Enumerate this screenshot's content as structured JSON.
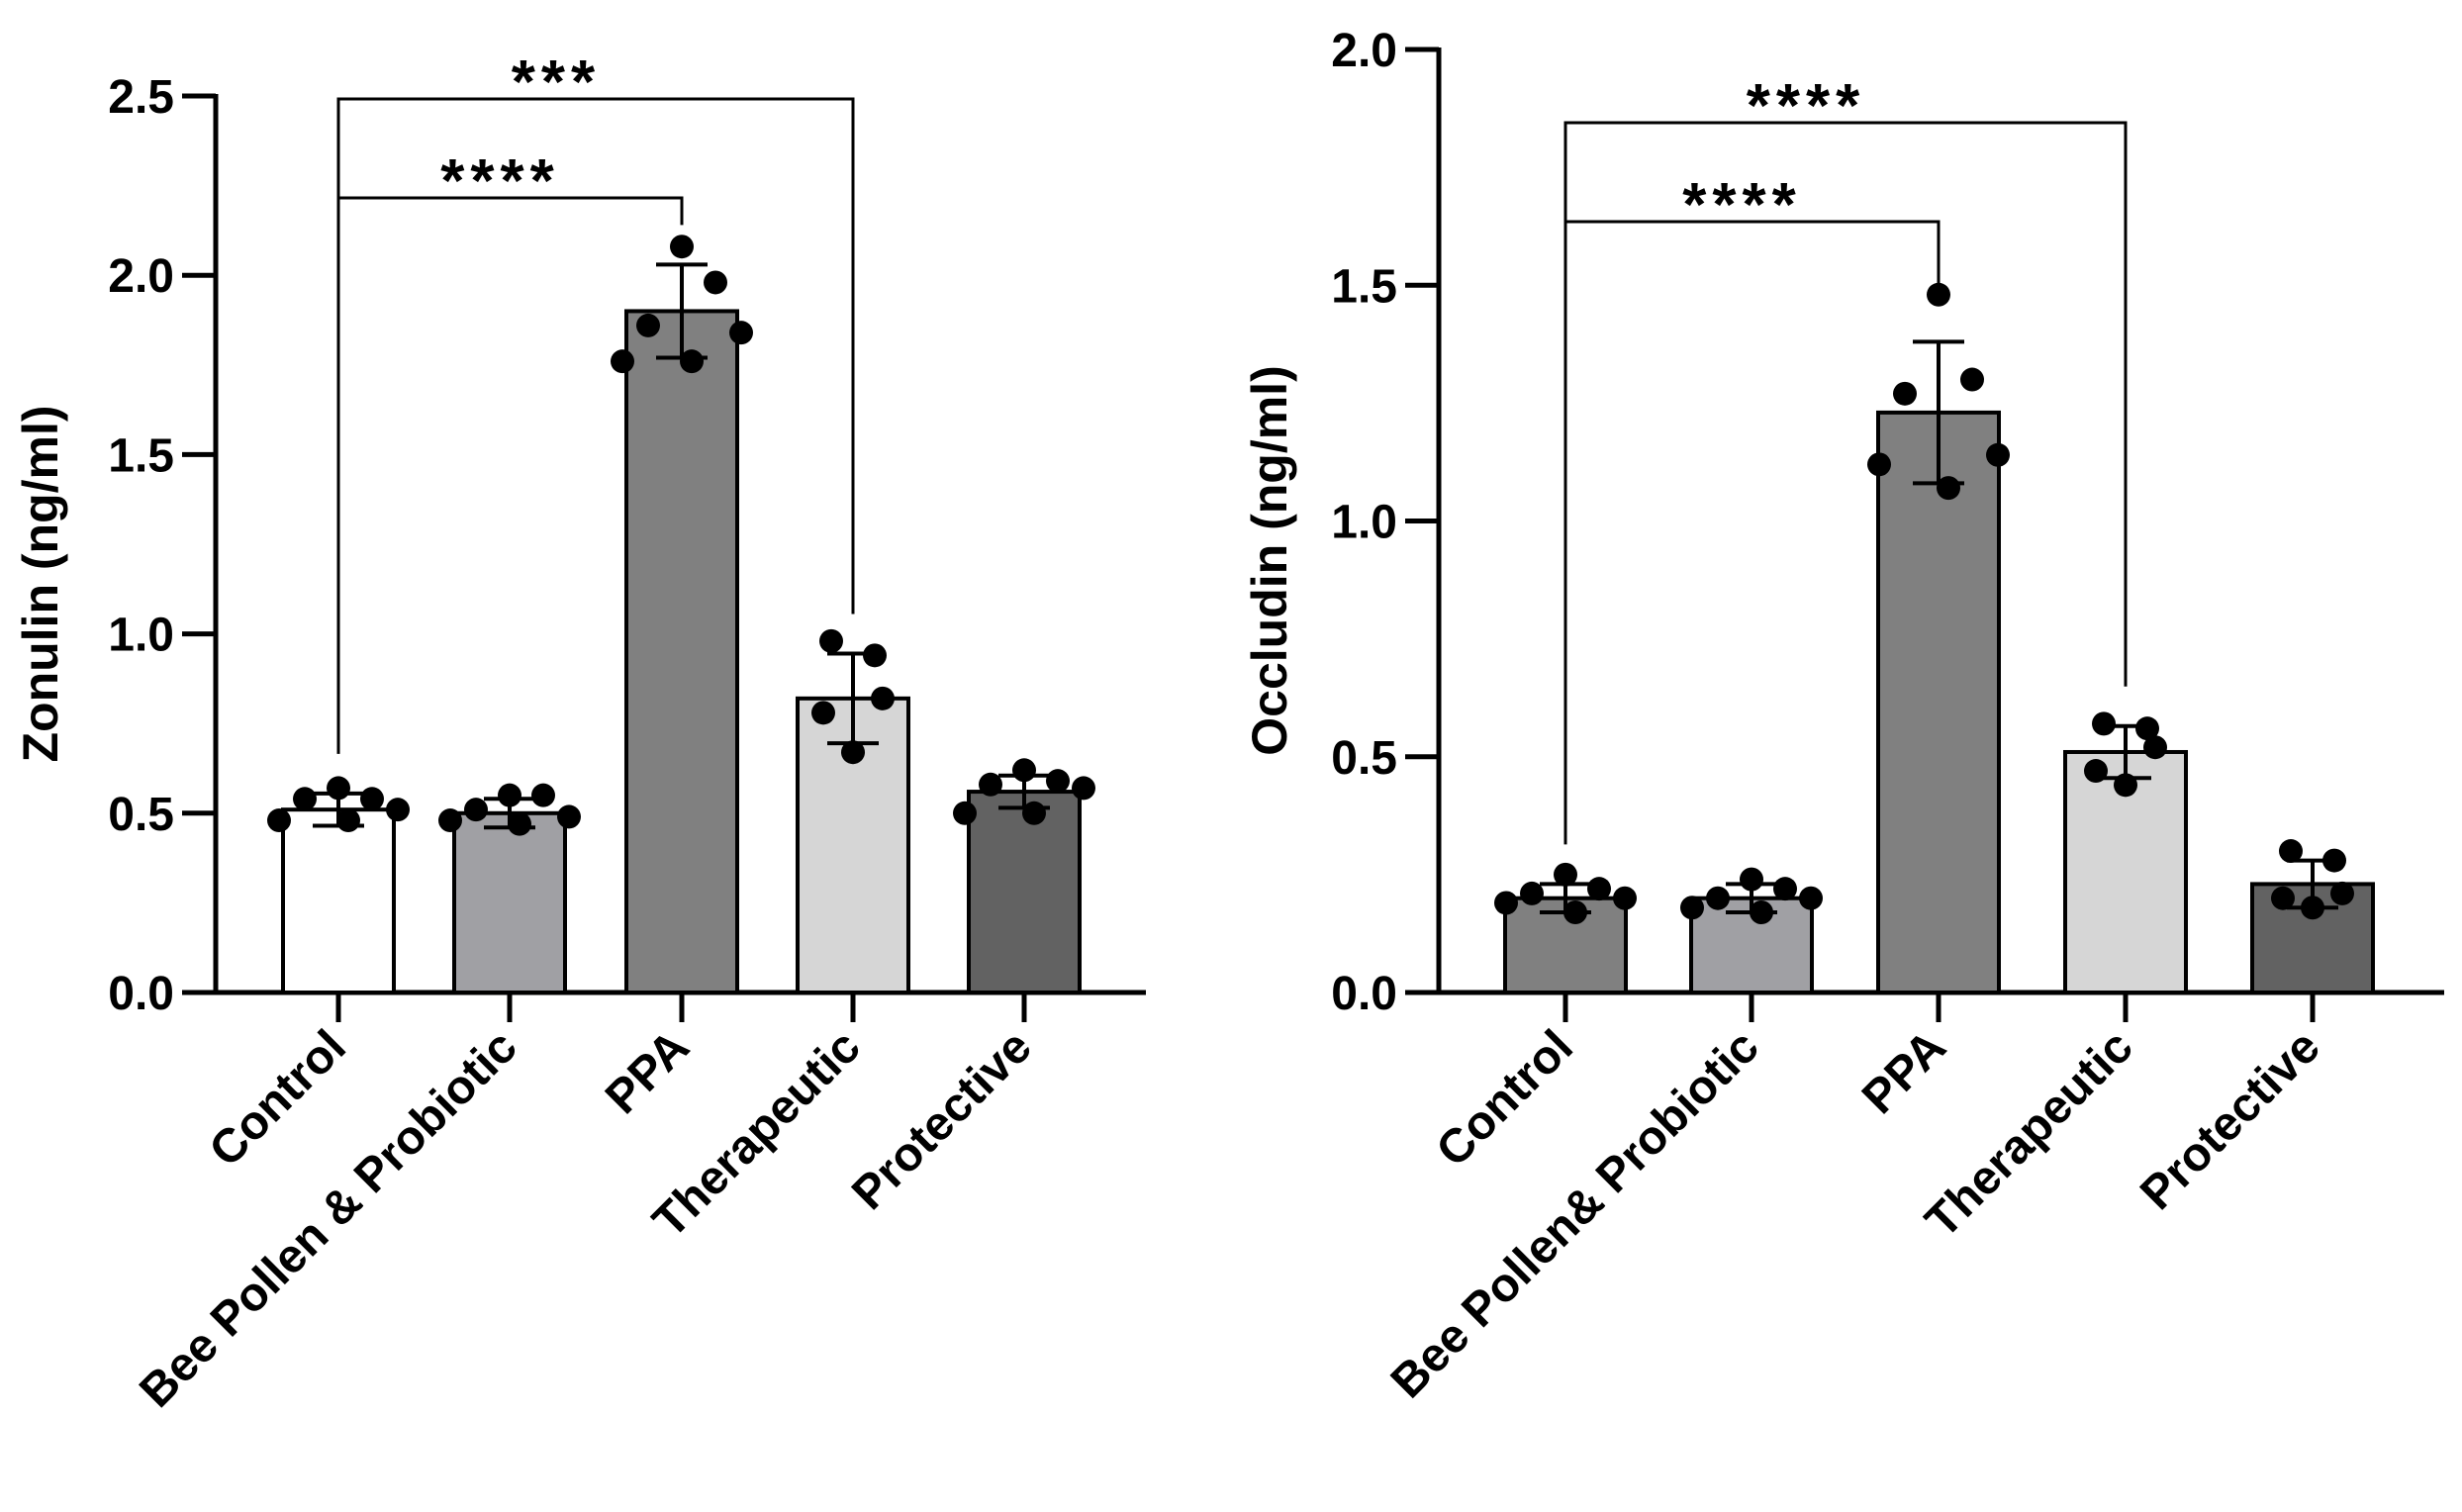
{
  "chart_data": [
    {
      "type": "bar",
      "ylabel": "Zonulin  (ng/ml)",
      "ylim": [
        0,
        2.5
      ],
      "yticks": [
        "0.0",
        "0.5",
        "1.0",
        "1.5",
        "2.0",
        "2.5"
      ],
      "categories": [
        "Control",
        "Bee Pollen & Probiotic",
        "PPA",
        "Therapeutic",
        "Protective"
      ],
      "values": [
        0.51,
        0.5,
        1.9,
        0.82,
        0.56
      ],
      "errors": [
        0.045,
        0.04,
        0.13,
        0.125,
        0.045
      ],
      "colors": [
        "#ffffff",
        "#a0a0a4",
        "#808080",
        "#d6d6d6",
        "#626262"
      ],
      "points": [
        [
          0.57,
          0.54,
          0.54,
          0.51,
          0.48,
          0.48
        ],
        [
          0.55,
          0.55,
          0.51,
          0.49,
          0.48,
          0.47
        ],
        [
          2.08,
          1.98,
          1.86,
          1.84,
          1.76,
          1.76
        ],
        [
          0.98,
          0.94,
          0.82,
          0.78,
          0.67
        ],
        [
          0.62,
          0.59,
          0.58,
          0.57,
          0.5,
          0.5
        ]
      ],
      "comparisons": [
        {
          "from": 0,
          "to": 2,
          "label": "****"
        },
        {
          "from": 0,
          "to": 3,
          "label": "***"
        }
      ]
    },
    {
      "type": "bar",
      "ylabel": "Occludin (ng/ml)",
      "ylim": [
        0,
        2.0
      ],
      "yticks": [
        "0.0",
        "0.5",
        "1.0",
        "1.5",
        "2.0"
      ],
      "categories": [
        "Control",
        "Bee Pollen& Probiotic",
        "PPA",
        "Therapeutic",
        "Protective"
      ],
      "values": [
        0.2,
        0.2,
        1.23,
        0.51,
        0.23
      ],
      "errors": [
        0.03,
        0.03,
        0.15,
        0.055,
        0.05
      ],
      "colors": [
        "#808080",
        "#a0a0a4",
        "#808080",
        "#d6d6d6",
        "#626262"
      ],
      "points": [
        [
          0.25,
          0.22,
          0.21,
          0.2,
          0.19,
          0.17
        ],
        [
          0.24,
          0.22,
          0.2,
          0.2,
          0.18,
          0.17
        ],
        [
          1.48,
          1.3,
          1.27,
          1.14,
          1.12,
          1.07
        ],
        [
          0.57,
          0.56,
          0.52,
          0.47,
          0.44
        ],
        [
          0.3,
          0.28,
          0.21,
          0.2,
          0.18
        ]
      ],
      "comparisons": [
        {
          "from": 0,
          "to": 2,
          "label": "****"
        },
        {
          "from": 0,
          "to": 3,
          "label": "****"
        }
      ]
    }
  ]
}
